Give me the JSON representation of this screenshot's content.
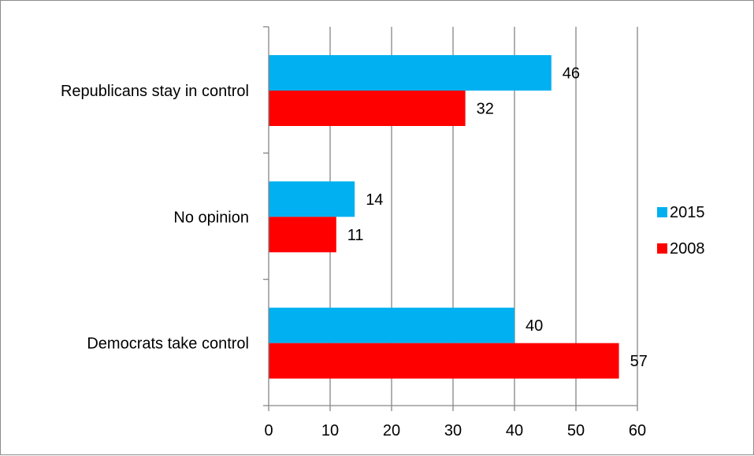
{
  "chart_data": {
    "type": "bar",
    "orientation": "horizontal",
    "categories": [
      "Republicans stay in control",
      "No opinion",
      "Democrats take control"
    ],
    "series": [
      {
        "name": "2015",
        "color": "#00b0f0",
        "values": [
          46,
          14,
          40
        ]
      },
      {
        "name": "2008",
        "color": "#ff0000",
        "values": [
          32,
          11,
          57
        ]
      }
    ],
    "data_labels": {
      "2015": [
        "46",
        "14",
        "40"
      ],
      "2008": [
        "32",
        "11",
        "57"
      ]
    },
    "xlim": [
      0,
      60
    ],
    "x_ticks": [
      "0",
      "10",
      "20",
      "30",
      "40",
      "50",
      "60"
    ],
    "title": "",
    "xlabel": "",
    "ylabel": "",
    "grid": "vertical",
    "legend_position": "right"
  }
}
